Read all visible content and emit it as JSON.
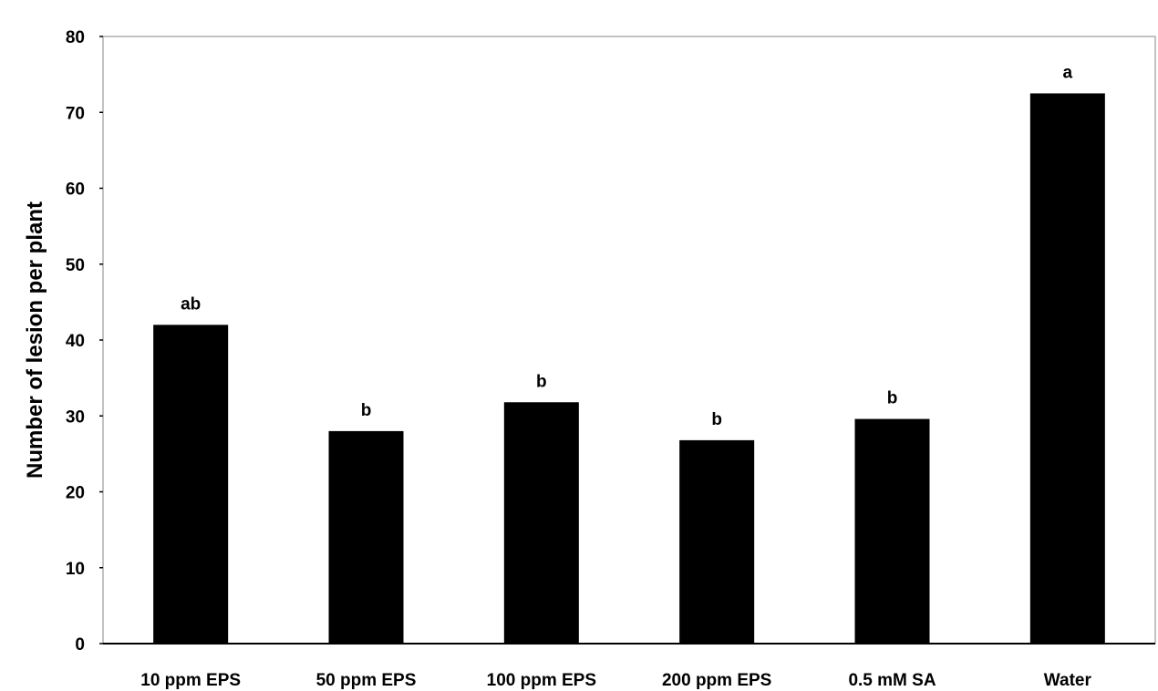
{
  "chart_data": {
    "type": "bar",
    "title": "",
    "xlabel": "",
    "ylabel": "Number of lesion per plant",
    "categories": [
      "10 ppm EPS",
      "50 ppm EPS",
      "100 ppm EPS",
      "200 ppm EPS",
      "0.5 mM SA",
      "Water"
    ],
    "values": [
      42,
      28,
      31.8,
      26.8,
      29.6,
      72.5
    ],
    "annotations": [
      "ab",
      "b",
      "b",
      "b",
      "b",
      "a"
    ],
    "ylim": [
      0,
      80
    ],
    "yticks": [
      0,
      10,
      20,
      30,
      40,
      50,
      60,
      70,
      80
    ],
    "grid": false,
    "bar_color": "#000000"
  }
}
